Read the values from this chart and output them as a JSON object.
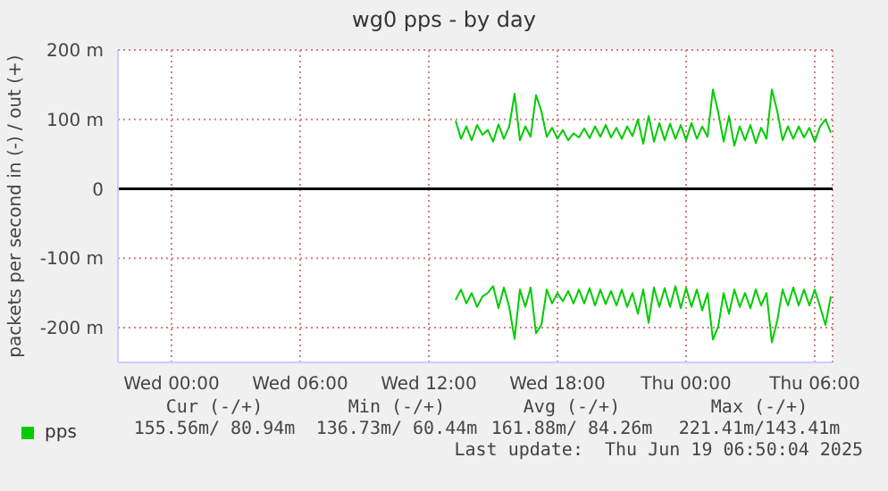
{
  "chart_data": {
    "type": "line",
    "title": "wg0 pps - by day",
    "ylabel": "packets per second in (-) / out (+)",
    "x": [
      "2025-06-18T13:15",
      "2025-06-18T13:30",
      "2025-06-18T13:45",
      "2025-06-18T14:00",
      "2025-06-18T14:15",
      "2025-06-18T14:30",
      "2025-06-18T14:45",
      "2025-06-18T15:00",
      "2025-06-18T15:15",
      "2025-06-18T15:30",
      "2025-06-18T15:45",
      "2025-06-18T16:00",
      "2025-06-18T16:15",
      "2025-06-18T16:30",
      "2025-06-18T16:45",
      "2025-06-18T17:00",
      "2025-06-18T17:15",
      "2025-06-18T17:30",
      "2025-06-18T17:45",
      "2025-06-18T18:00",
      "2025-06-18T18:15",
      "2025-06-18T18:30",
      "2025-06-18T18:45",
      "2025-06-18T19:00",
      "2025-06-18T19:15",
      "2025-06-18T19:30",
      "2025-06-18T19:45",
      "2025-06-18T20:00",
      "2025-06-18T20:15",
      "2025-06-18T20:30",
      "2025-06-18T20:45",
      "2025-06-18T21:00",
      "2025-06-18T21:15",
      "2025-06-18T21:30",
      "2025-06-18T21:45",
      "2025-06-18T22:00",
      "2025-06-18T22:15",
      "2025-06-18T22:30",
      "2025-06-18T22:45",
      "2025-06-18T23:00",
      "2025-06-18T23:15",
      "2025-06-18T23:30",
      "2025-06-18T23:45",
      "2025-06-19T00:00",
      "2025-06-19T00:15",
      "2025-06-19T00:30",
      "2025-06-19T00:45",
      "2025-06-19T01:00",
      "2025-06-19T01:15",
      "2025-06-19T01:30",
      "2025-06-19T01:45",
      "2025-06-19T02:00",
      "2025-06-19T02:15",
      "2025-06-19T02:30",
      "2025-06-19T02:45",
      "2025-06-19T03:00",
      "2025-06-19T03:15",
      "2025-06-19T03:30",
      "2025-06-19T03:45",
      "2025-06-19T04:00",
      "2025-06-19T04:15",
      "2025-06-19T04:30",
      "2025-06-19T04:45",
      "2025-06-19T05:00",
      "2025-06-19T05:15",
      "2025-06-19T05:30",
      "2025-06-19T05:45",
      "2025-06-19T06:00",
      "2025-06-19T06:15",
      "2025-06-19T06:30",
      "2025-06-19T06:45"
    ],
    "series": [
      {
        "name": "pps",
        "color": "#00cc00",
        "values": [
          98,
          72,
          90,
          70,
          92,
          78,
          85,
          68,
          93,
          72,
          90,
          137,
          70,
          90,
          75,
          135,
          112,
          75,
          88,
          72,
          85,
          70,
          80,
          74,
          87,
          73,
          90,
          75,
          92,
          74,
          88,
          72,
          90,
          76,
          100,
          65,
          105,
          68,
          95,
          70,
          94,
          72,
          92,
          70,
          95,
          72,
          90,
          75,
          143,
          110,
          68,
          105,
          62,
          90,
          70,
          92,
          66,
          88,
          72,
          143,
          112,
          70,
          90,
          72,
          90,
          74,
          88,
          68,
          90,
          100,
          81
        ]
      },
      {
        "color": "#00cc00",
        "values": [
          -160,
          -145,
          -165,
          -150,
          -170,
          -155,
          -150,
          -140,
          -172,
          -142,
          -170,
          -216,
          -145,
          -170,
          -142,
          -208,
          -196,
          -145,
          -165,
          -150,
          -162,
          -147,
          -165,
          -145,
          -165,
          -143,
          -168,
          -145,
          -166,
          -147,
          -168,
          -145,
          -170,
          -150,
          -180,
          -145,
          -193,
          -142,
          -170,
          -143,
          -170,
          -140,
          -172,
          -143,
          -170,
          -145,
          -175,
          -150,
          -217,
          -198,
          -150,
          -180,
          -145,
          -170,
          -150,
          -172,
          -145,
          -168,
          -150,
          -221,
          -190,
          -145,
          -168,
          -142,
          -168,
          -145,
          -168,
          -145,
          -170,
          -196,
          -155
        ]
      }
    ],
    "xlim": [
      "2025-06-17T21:30",
      "2025-06-19T06:50"
    ],
    "xticks": [
      {
        "value": "2025-06-18T00:00",
        "label": "Wed 00:00"
      },
      {
        "value": "2025-06-18T06:00",
        "label": "Wed 06:00"
      },
      {
        "value": "2025-06-18T12:00",
        "label": "Wed 12:00"
      },
      {
        "value": "2025-06-18T18:00",
        "label": "Wed 18:00"
      },
      {
        "value": "2025-06-19T00:00",
        "label": "Thu 00:00"
      },
      {
        "value": "2025-06-19T06:00",
        "label": "Thu 06:00"
      }
    ],
    "ylim": [
      -250,
      200
    ],
    "yticks": [
      {
        "value": -200,
        "label": "-200 m"
      },
      {
        "value": -100,
        "label": "-100 m"
      },
      0,
      {
        "value": 100,
        "label": "100 m"
      },
      {
        "value": 200,
        "label": "200 m"
      }
    ],
    "ref_lines": [
      {
        "axis": "y",
        "value": 0,
        "color": "#000000"
      }
    ],
    "grid": true,
    "legend": "bottom left",
    "marker": "none",
    "line_style": "solid",
    "annotations": [
      "Cur (-/+)",
      "Min (-/+)",
      "Avg (-/+)",
      "Max (-/+)",
      "155.56m/ 80.94m",
      "136.73m/ 60.44m",
      "161.88m/ 84.26m",
      "221.41m/143.41m",
      "Last update:  Thu Jun 19 06:50:04 2025"
    ]
  }
}
